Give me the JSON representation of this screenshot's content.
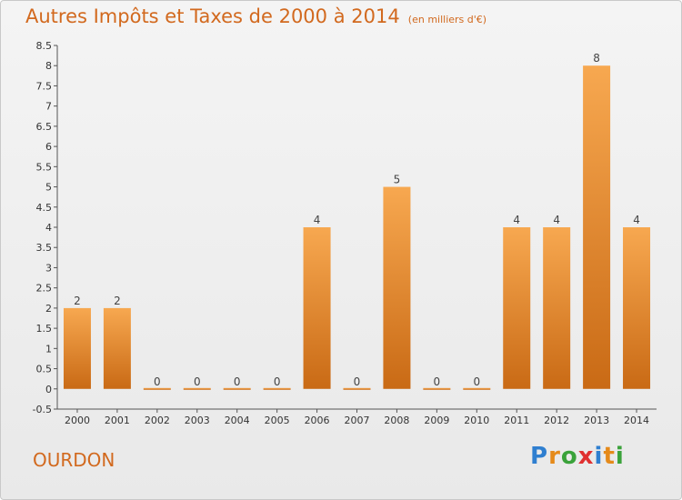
{
  "title": "Autres Impôts et Taxes de 2000 à 2014",
  "subtitle": "(en milliers d'€)",
  "commune": "OURDON",
  "logo": {
    "letters": [
      "P",
      "r",
      "o",
      "x",
      "i",
      "t",
      "i"
    ],
    "colors": [
      "#2f7fd0",
      "#e58a1a",
      "#3aa23a",
      "#e03030",
      "#2f7fd0",
      "#e58a1a",
      "#3aa23a"
    ]
  },
  "chart_data": {
    "type": "bar",
    "categories": [
      "2000",
      "2001",
      "2002",
      "2003",
      "2004",
      "2005",
      "2006",
      "2007",
      "2008",
      "2009",
      "2010",
      "2011",
      "2012",
      "2013",
      "2014"
    ],
    "values": [
      2,
      2,
      0,
      0,
      0,
      0,
      4,
      0,
      5,
      0,
      0,
      4,
      4,
      8,
      4
    ],
    "labels": [
      "2",
      "2",
      "0",
      "0",
      "0",
      "0",
      "4",
      "0",
      "5",
      "0",
      "0",
      "4",
      "4",
      "8",
      "4"
    ],
    "ylim": [
      -0.5,
      8.5
    ],
    "yticks": [
      "-0.5",
      "0",
      "0.5",
      "1",
      "1.5",
      "2",
      "2.5",
      "3",
      "3.5",
      "4",
      "4.5",
      "5",
      "5.5",
      "6",
      "6.5",
      "7",
      "7.5",
      "8",
      "8.5"
    ],
    "bar_color": "#f0922e",
    "grid": false
  }
}
